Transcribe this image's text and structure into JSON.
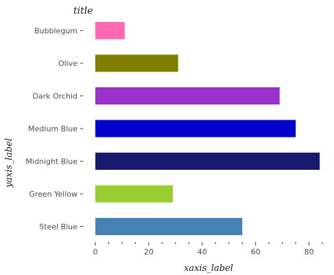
{
  "chart_data": {
    "type": "bar",
    "orientation": "horizontal",
    "title": "title",
    "xlabel": "xaxis_label",
    "ylabel": "yaxis_label",
    "xlim": [
      0,
      89
    ],
    "xticks": [
      0,
      20,
      40,
      60,
      80
    ],
    "grid": false,
    "categories": [
      "Steel Blue",
      "Green Yellow",
      "Midnight Blue",
      "Medium Blue",
      "Dark Orchid",
      "Olive",
      "Bubblegum"
    ],
    "values": [
      55,
      29,
      84,
      75,
      69,
      31,
      11
    ],
    "colors": [
      "#4682b4",
      "#9acd32",
      "#191970",
      "#0000cd",
      "#9932cc",
      "#808000",
      "#ff69b4"
    ]
  }
}
